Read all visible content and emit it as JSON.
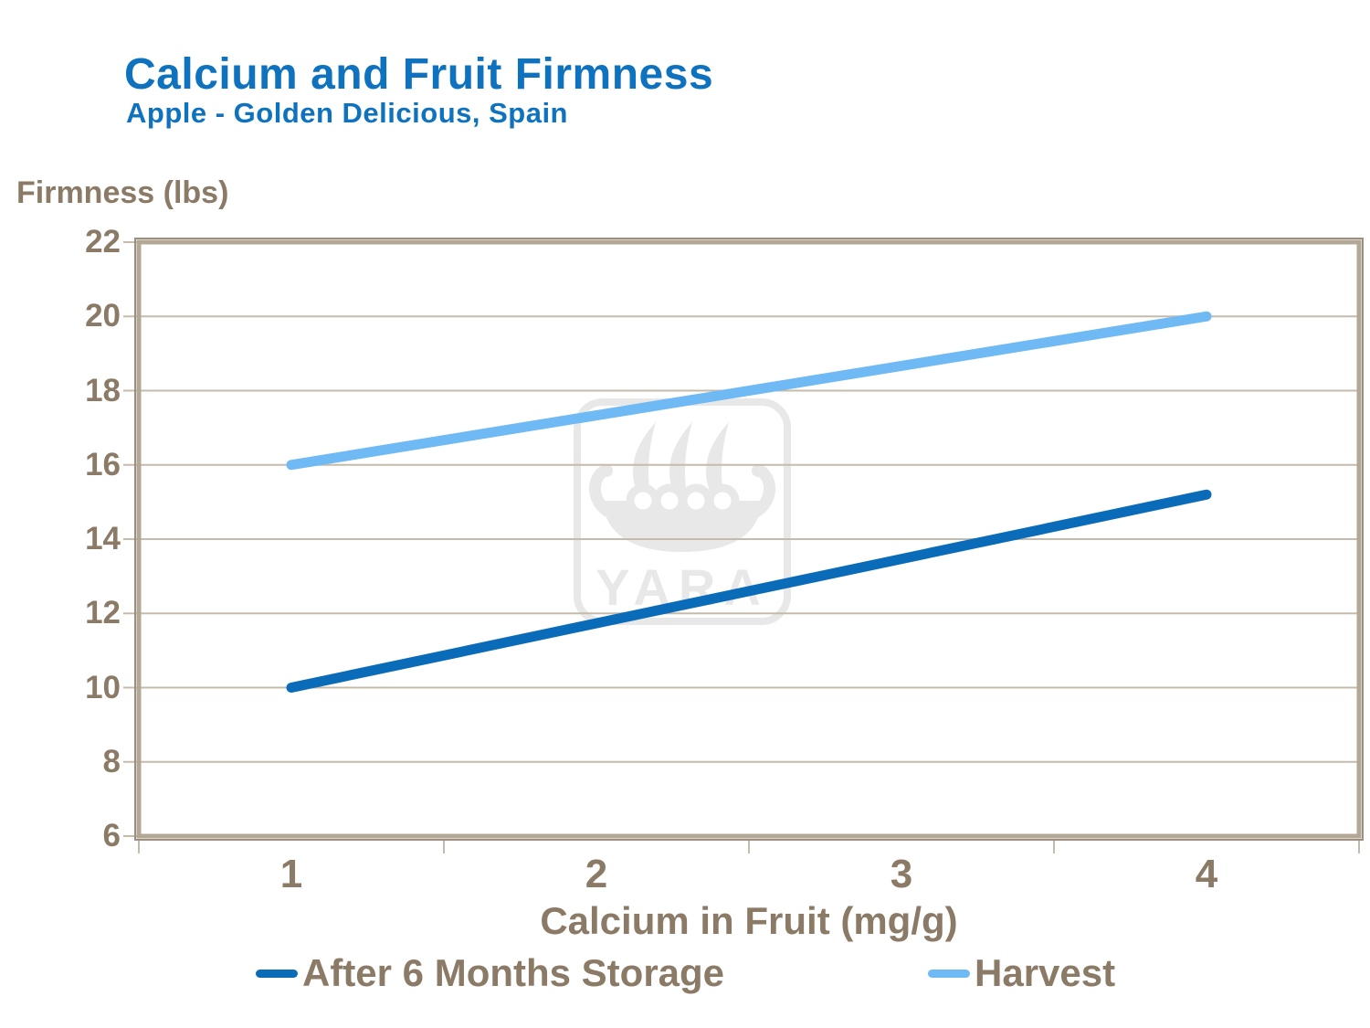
{
  "page": {
    "background": "#FFFFFF"
  },
  "header": {
    "title": "Calcium and Fruit Firmness",
    "subtitle": "Apple - Golden Delicious, Spain"
  },
  "watermark": {
    "text": "YARA"
  },
  "colors": {
    "title_blue": "#0F72BF",
    "label_brown": "#8A7A66",
    "gridline": "#C6BBAB",
    "plot_border": "#B3A795",
    "plot_border_dark": "#9C8F80",
    "watermark_gray": "#E8E8E8",
    "series_dark_blue": "#0A6BB8",
    "series_light_blue": "#6FB9F4"
  },
  "chart_data": {
    "type": "line",
    "title": "Calcium and Fruit Firmness",
    "subtitle": "Apple - Golden Delicious, Spain",
    "xlabel": "Calcium in Fruit (mg/g)",
    "ylabel": "Firmness (lbs)",
    "x_ticks": [
      1,
      2,
      3,
      4
    ],
    "y_ticks": [
      22,
      20,
      18,
      16,
      14,
      12,
      10,
      8,
      6
    ],
    "xlim": [
      0.5,
      4.5
    ],
    "ylim": [
      6,
      22
    ],
    "grid": "horizontal-only",
    "legend_position": "bottom",
    "series": [
      {
        "name": "After 6 Months Storage",
        "color": "#0A6BB8",
        "points": [
          [
            1,
            10
          ],
          [
            4,
            15.2
          ]
        ]
      },
      {
        "name": "Harvest",
        "color": "#6FB9F4",
        "points": [
          [
            1,
            16
          ],
          [
            4,
            20
          ]
        ]
      }
    ]
  }
}
